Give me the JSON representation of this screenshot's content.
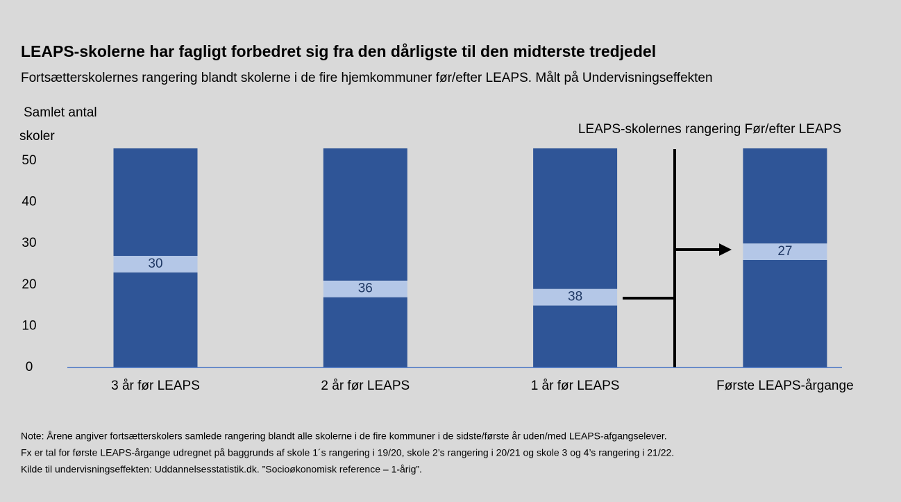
{
  "chart_data": {
    "type": "stacked_bar",
    "title": "LEAPS-skolerne har fagligt forbedret sig fra den dårligste til den midterste tredjedel",
    "subtitle": "Fortsætterskolernes rangering blandt skolerne i de fire hjemkommuner før/efter LEAPS. Målt på Undervisningseffekten",
    "y_label_lines": [
      "Samlet antal",
      "skoler"
    ],
    "annotation": "LEAPS-skolernes rangering Før/efter LEAPS",
    "categories": [
      "3 år før LEAPS",
      "2 år før LEAPS",
      "1 år før LEAPS",
      "Første LEAPS-årgange"
    ],
    "series": [
      {
        "color": "#2f5597",
        "values": [
          23,
          17,
          15,
          26
        ]
      },
      {
        "color": "#b4c7e7",
        "values": [
          4,
          4,
          4,
          4
        ]
      },
      {
        "color": "#2f5597",
        "values": [
          26,
          32,
          34,
          23
        ]
      }
    ],
    "rank_labels": [
      30,
      36,
      38,
      27
    ],
    "ylim": [
      0,
      53
    ],
    "yticks": [
      0,
      10,
      20,
      30,
      40,
      50
    ],
    "grid": false,
    "notes": [
      "Note: Årene angiver fortsætterskolers samlede rangering blandt alle skolerne i de fire kommuner i de sidste/første år uden/med LEAPS-afgangselever.",
      "Fx er tal for første LEAPS-årgange udregnet på baggrunds af skole 1´s rangering i 19/20, skole 2’s rangering i 20/21 og skole 3 og 4’s rangering i 21/22.",
      "Kilde til undervisningseffekten: Uddannelsesstatistik.dk. ”Socioøkonomisk reference – 1-årig”."
    ]
  }
}
